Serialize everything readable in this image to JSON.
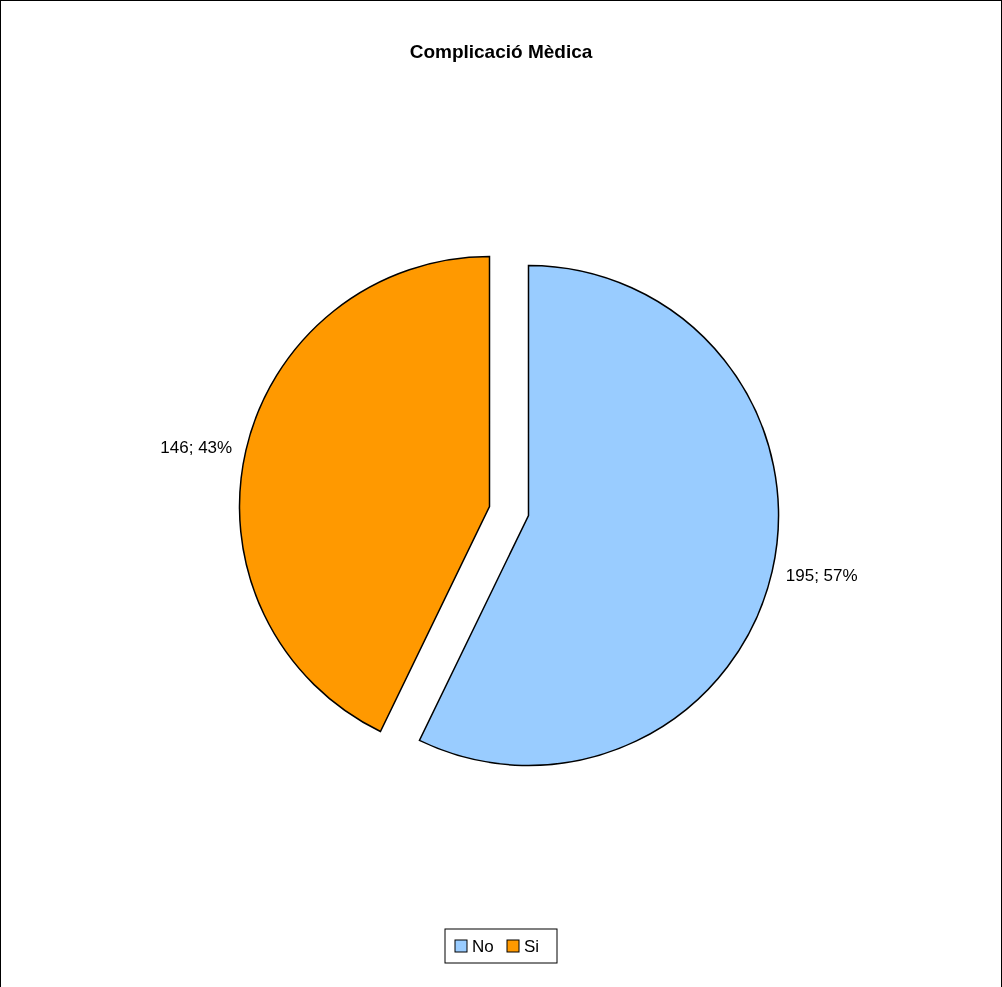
{
  "chart_data": {
    "type": "pie",
    "title": "Complicació Mèdica",
    "categories": [
      "No",
      "Si"
    ],
    "values": [
      195,
      146
    ],
    "colors": [
      "#99ccff",
      "#ff9900"
    ],
    "value_labels": [
      "195; 57%",
      "146; 43%"
    ],
    "legend": "bottom"
  }
}
